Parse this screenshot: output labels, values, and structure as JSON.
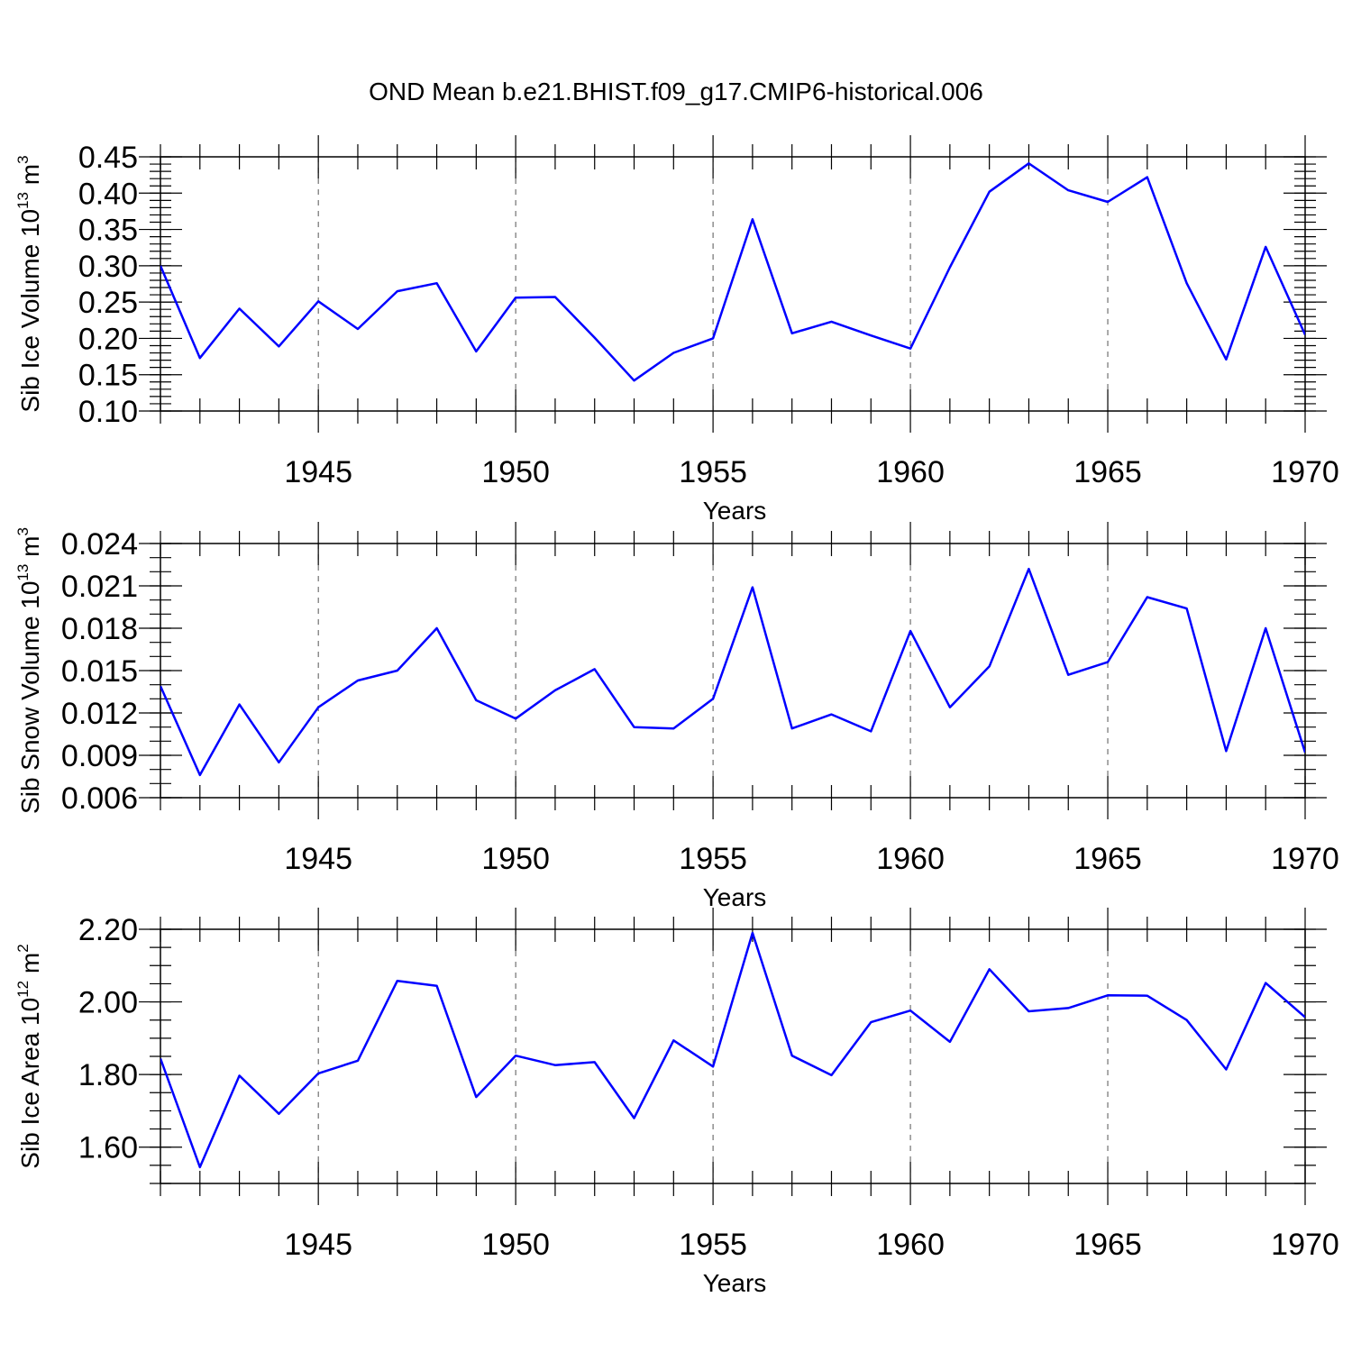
{
  "title": "OND Mean b.e21.BHIST.f09_g17.CMIP6-historical.006",
  "colors": {
    "series": "#0000ff"
  },
  "chart_data": [
    {
      "type": "line",
      "ylabel": {
        "text": "Sib Ice Volume 10",
        "exp": "13",
        "unit": " m",
        "unit_exp": "3"
      },
      "xlabel": "Years",
      "xlim": [
        1941,
        1970
      ],
      "ylim": [
        0.1,
        0.45
      ],
      "yticks": [
        0.1,
        0.15,
        0.2,
        0.25,
        0.3,
        0.35,
        0.4,
        0.45
      ],
      "ytick_labels": [
        "0.10",
        "0.15",
        "0.20",
        "0.25",
        "0.30",
        "0.35",
        "0.40",
        "0.45"
      ],
      "yminor_step": 0.01,
      "xticks": [
        1945,
        1950,
        1955,
        1960,
        1965,
        1970
      ],
      "xtick_labels": [
        "1945",
        "1950",
        "1955",
        "1960",
        "1965",
        "1970"
      ],
      "grid": "vertical-dashed",
      "x": [
        1941,
        1942,
        1943,
        1944,
        1945,
        1946,
        1947,
        1948,
        1949,
        1950,
        1951,
        1952,
        1953,
        1954,
        1955,
        1956,
        1957,
        1958,
        1959,
        1960,
        1961,
        1962,
        1963,
        1964,
        1965,
        1966,
        1967,
        1968,
        1969,
        1970
      ],
      "values": [
        0.3,
        0.173,
        0.241,
        0.189,
        0.251,
        0.213,
        0.265,
        0.276,
        0.182,
        0.256,
        0.257,
        0.201,
        0.142,
        0.18,
        0.2,
        0.364,
        0.207,
        0.223,
        0.204,
        0.186,
        0.298,
        0.402,
        0.441,
        0.404,
        0.388,
        0.422,
        0.276,
        0.171,
        0.326,
        0.205
      ]
    },
    {
      "type": "line",
      "ylabel": {
        "text": "Sib Snow Volume 10",
        "exp": "13",
        "unit": " m",
        "unit_exp": "3"
      },
      "xlabel": "Years",
      "xlim": [
        1941,
        1970
      ],
      "ylim": [
        0.006,
        0.024
      ],
      "yticks": [
        0.006,
        0.009,
        0.012,
        0.015,
        0.018,
        0.021,
        0.024
      ],
      "ytick_labels": [
        "0.006",
        "0.009",
        "0.012",
        "0.015",
        "0.018",
        "0.021",
        "0.024"
      ],
      "yminor_step": 0.001,
      "xticks": [
        1945,
        1950,
        1955,
        1960,
        1965,
        1970
      ],
      "xtick_labels": [
        "1945",
        "1950",
        "1955",
        "1960",
        "1965",
        "1970"
      ],
      "grid": "vertical-dashed",
      "x": [
        1941,
        1942,
        1943,
        1944,
        1945,
        1946,
        1947,
        1948,
        1949,
        1950,
        1951,
        1952,
        1953,
        1954,
        1955,
        1956,
        1957,
        1958,
        1959,
        1960,
        1961,
        1962,
        1963,
        1964,
        1965,
        1966,
        1967,
        1968,
        1969,
        1970
      ],
      "values": [
        0.0139,
        0.0076,
        0.0126,
        0.0085,
        0.0124,
        0.0143,
        0.015,
        0.018,
        0.0129,
        0.0116,
        0.0136,
        0.0151,
        0.011,
        0.0109,
        0.013,
        0.0209,
        0.0109,
        0.0119,
        0.0107,
        0.0178,
        0.0124,
        0.0153,
        0.0222,
        0.0147,
        0.0156,
        0.0202,
        0.0194,
        0.0093,
        0.018,
        0.0092
      ]
    },
    {
      "type": "line",
      "ylabel": {
        "text": "Sib Ice Area 10",
        "exp": "12",
        "unit": " m",
        "unit_exp": "2"
      },
      "xlabel": "Years",
      "xlim": [
        1941,
        1970
      ],
      "ylim": [
        1.5,
        2.2
      ],
      "yticks": [
        1.6,
        1.8,
        2.0,
        2.2
      ],
      "ytick_labels": [
        "1.60",
        "1.80",
        "2.00",
        "2.20"
      ],
      "yminor_step": 0.05,
      "xticks": [
        1945,
        1950,
        1955,
        1960,
        1965,
        1970
      ],
      "xtick_labels": [
        "1945",
        "1950",
        "1955",
        "1960",
        "1965",
        "1970"
      ],
      "grid": "vertical-dashed",
      "x": [
        1941,
        1942,
        1943,
        1944,
        1945,
        1946,
        1947,
        1948,
        1949,
        1950,
        1951,
        1952,
        1953,
        1954,
        1955,
        1956,
        1957,
        1958,
        1959,
        1960,
        1961,
        1962,
        1963,
        1964,
        1965,
        1966,
        1967,
        1968,
        1969,
        1970
      ],
      "values": [
        1.844,
        1.545,
        1.797,
        1.692,
        1.803,
        1.838,
        2.058,
        2.044,
        1.738,
        1.852,
        1.826,
        1.834,
        1.68,
        1.894,
        1.822,
        2.19,
        1.852,
        1.798,
        1.944,
        1.976,
        1.89,
        2.09,
        1.974,
        1.983,
        2.018,
        2.017,
        1.95,
        1.814,
        2.052,
        1.958
      ]
    }
  ]
}
